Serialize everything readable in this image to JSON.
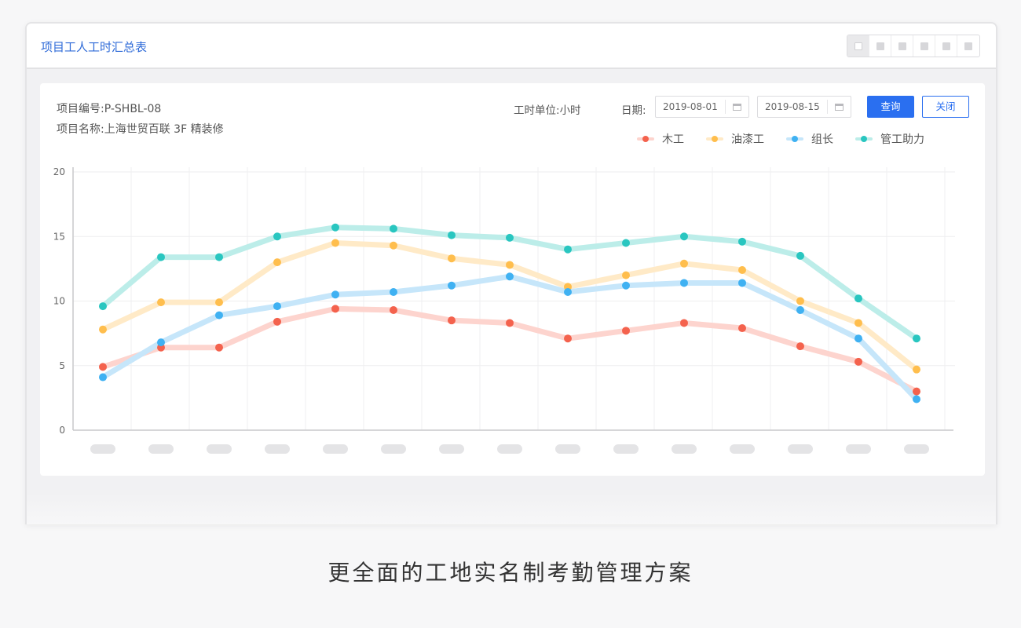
{
  "window": {
    "title": "项目工人工时汇总表"
  },
  "view_switch": {
    "buttons": 6,
    "active_index": 0
  },
  "project": {
    "code_label": "项目编号:",
    "code": "P-SHBL-08",
    "name_label": "项目名称:",
    "name": "上海世贸百联 3F 精装修"
  },
  "filters": {
    "unit_label": "工时单位:",
    "unit": "小时",
    "date_label": "日期:",
    "start_date": "2019-08-01",
    "end_date": "2019-08-15",
    "query_label": "查询",
    "close_label": "关闭"
  },
  "chart_data": {
    "type": "line",
    "ylim": [
      0,
      20
    ],
    "yticks": [
      0,
      5,
      10,
      15,
      20
    ],
    "x_count": 15,
    "grid": true,
    "legend_position": "top-right",
    "series": [
      {
        "name": "木工",
        "color": "#f4624d",
        "line_color": "#fdd4ce",
        "values": [
          4.9,
          6.4,
          6.4,
          8.4,
          9.4,
          9.3,
          8.5,
          8.3,
          7.1,
          7.7,
          8.3,
          7.9,
          6.5,
          5.3,
          3.0
        ]
      },
      {
        "name": "油漆工",
        "color": "#ffbe4d",
        "line_color": "#ffeac7",
        "values": [
          7.8,
          9.9,
          9.9,
          13.0,
          14.5,
          14.3,
          13.3,
          12.8,
          11.1,
          12.0,
          12.9,
          12.4,
          10.0,
          8.3,
          4.7
        ]
      },
      {
        "name": "组长",
        "color": "#3fb1f2",
        "line_color": "#c6e6fa",
        "values": [
          4.1,
          6.8,
          8.9,
          9.6,
          10.5,
          10.7,
          11.2,
          11.9,
          10.7,
          11.2,
          11.4,
          11.4,
          9.3,
          7.1,
          2.4
        ]
      },
      {
        "name": "管工助力",
        "color": "#29c6c0",
        "line_color": "#bcede9",
        "values": [
          9.6,
          13.4,
          13.4,
          15.0,
          15.7,
          15.6,
          15.1,
          14.9,
          14.0,
          14.5,
          15.0,
          14.6,
          13.5,
          10.2,
          7.1
        ]
      }
    ]
  },
  "tagline": "更全面的工地实名制考勤管理方案"
}
